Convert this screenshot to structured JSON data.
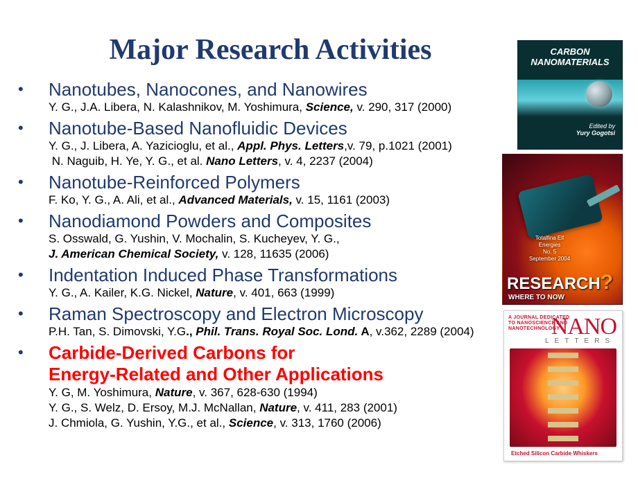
{
  "title": "Major Research Activities",
  "colors": {
    "heading": "#1f3a6e",
    "bullet": "#1f3a6e",
    "topic": "#1f3a6e",
    "highlight": "#ff0000",
    "citation": "#000000",
    "background": "#ffffff"
  },
  "typography": {
    "title_font": "Times New Roman",
    "title_size_pt": 32,
    "title_weight": "bold",
    "body_font": "Arial",
    "topic_size_pt": 20,
    "citation_size_pt": 13
  },
  "items": [
    {
      "topic": "Nanotubes, Nanocones, and Nanowires",
      "highlight": false,
      "citations": [
        {
          "pre": "Y. G., J.A. Libera, N. Kalashnikov, M. Yoshimura, ",
          "journal_ib": "Science,",
          "post": " v. 290, 317 (2000)"
        }
      ]
    },
    {
      "topic": "Nanotube-Based Nanofluidic Devices",
      "highlight": false,
      "citations": [
        {
          "pre": "Y. G., J. Libera, A. Yazicioglu, et al., ",
          "journal_ib": "Appl. Phys. Letters",
          "post": ",v. 79, p.1021 (2001)"
        },
        {
          "pre": " N. Naguib, H. Ye, Y. G., et al. ",
          "journal_ib": "Nano Letters",
          "post": ", v. 4, 2237 (2004)"
        }
      ]
    },
    {
      "topic": "Nanotube-Reinforced Polymers",
      "highlight": false,
      "citations": [
        {
          "pre": "F. Ko,  Y. G., A. Ali, et al., ",
          "journal_ib": "Advanced Materials,",
          "post": " v. 15, 1161 (2003)"
        }
      ]
    },
    {
      "topic": "Nanodiamond Powders and Composites",
      "highlight": false,
      "citations": [
        {
          "pre": "S. Osswald, G. Yushin, V. Mochalin, S. Kucheyev, Y. G.,",
          "journal_ib": "",
          "post": ""
        },
        {
          "pre": "",
          "journal_ib": "J. American Chemical Society,",
          "post": " v. 128, 11635  (2006)"
        }
      ]
    },
    {
      "topic": "Indentation Induced Phase Transformations",
      "highlight": false,
      "citations": [
        {
          "pre": "Y. G., A. Kailer, K.G. Nickel, ",
          "journal_ib": "Nature",
          "post": ", v. 401, 663 (1999)"
        }
      ]
    },
    {
      "topic": "Raman Spectroscopy and Electron Microscopy",
      "highlight": false,
      "citations": [
        {
          "pre": "P.H. Tan, S. Dimovski, Y.G",
          "journal_b": "., ",
          "journal_ib": "Phil. Trans. Royal Soc. Lond.",
          "post_b": " A",
          "post": ", v.362, 2289 (2004)"
        }
      ]
    },
    {
      "topic": "Carbide-Derived Carbons for",
      "topic_line2": "Energy-Related and Other Applications",
      "highlight": true,
      "citations": [
        {
          "pre": "Y. G, M. Yoshimura, ",
          "journal_ib": "Nature",
          "post": ", v. 367, 628-630 (1994)"
        },
        {
          "pre": "Y. G., S. Welz, D. Ersoy, M.J. McNallan, ",
          "journal_ib": "Nature",
          "post": ", v. 411, 283 (2001)"
        },
        {
          "pre": "J. Chmiola, G. Yushin, Y.G., et al., ",
          "journal_ib": "Science",
          "post": ", v. 313, 1760 (2006)"
        }
      ]
    }
  ],
  "thumbnails": {
    "cover1": {
      "title_l1": "CARBON",
      "title_l2": "NANOMATERIALS",
      "editor_label": "Edited by",
      "editor_name": "Yury Gogotsi",
      "bg_top": "#0a2f33",
      "bg_band": "#2aa3b0"
    },
    "cover2": {
      "badge_l1": "Totalfina Elf",
      "badge_l2": "Energies",
      "badge_l3": "No. 5",
      "badge_l4": "September 2004",
      "headline": "RESEARCH",
      "qmark": "?",
      "sub": "WHERE TO NOW"
    },
    "cover3": {
      "tag_l1": "A JOURNAL DEDICATED",
      "tag_l2": "TO NANOSCIENCE AND",
      "tag_l3": "NANOTECHNOLOGY",
      "nano": "NANO",
      "letters": "LETTERS",
      "caption": "Etched Silicon Carbide Whiskers",
      "accent": "#c8102e"
    }
  }
}
